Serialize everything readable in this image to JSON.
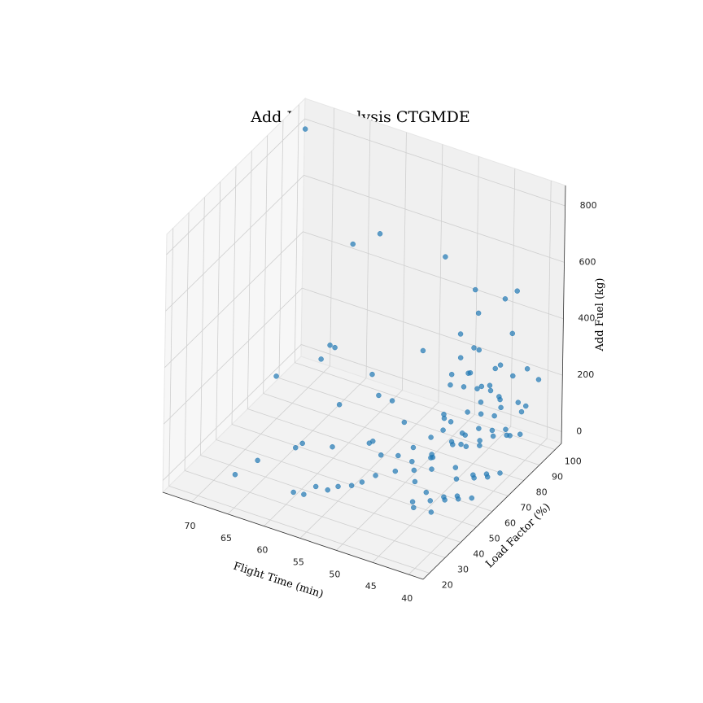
{
  "chart_data": {
    "type": "scatter3d",
    "title": "Add Fuel Analysis CTGMDE",
    "x_label": "Flight Time (min)",
    "y_label": "Load Factor (%)",
    "z_label": "Add Fuel (kg)",
    "color": "#1f77b4",
    "xlim": [
      74,
      38
    ],
    "ylim": [
      16,
      104
    ],
    "zlim": [
      -42,
      872
    ],
    "xticks": [
      40,
      45,
      50,
      55,
      60,
      65,
      70
    ],
    "yticks": [
      20,
      30,
      40,
      50,
      60,
      70,
      80,
      90,
      100
    ],
    "zticks": [
      0,
      200,
      400,
      600,
      800
    ],
    "x": [
      72,
      45,
      60,
      62,
      44,
      42,
      41,
      45,
      43,
      60,
      50,
      47,
      42,
      44,
      55,
      64,
      68,
      66,
      52,
      40,
      58,
      56,
      48,
      46,
      44,
      43,
      42,
      41,
      40,
      45,
      47,
      46,
      44,
      43,
      42,
      41,
      40,
      48,
      49,
      50,
      47,
      46,
      45,
      44,
      43,
      42,
      41,
      40,
      48,
      47,
      46,
      45,
      44,
      43,
      42,
      41,
      40,
      49,
      48,
      47,
      46,
      45,
      44,
      43,
      42,
      50,
      51,
      52,
      53,
      54,
      55,
      56,
      57,
      58,
      59,
      50,
      49,
      48,
      47,
      46,
      45,
      44,
      43,
      42,
      41,
      40,
      48,
      47,
      46,
      45,
      60,
      64,
      66,
      62,
      58,
      54,
      52,
      50,
      49,
      48,
      47,
      46,
      45,
      43,
      41,
      44,
      42,
      40,
      55,
      53
    ],
    "y": [
      95,
      60,
      88,
      80,
      75,
      85,
      88,
      82,
      70,
      60,
      70,
      80,
      90,
      78,
      40,
      70,
      60,
      85,
      60,
      98,
      75,
      70,
      85,
      82,
      80,
      75,
      82,
      78,
      85,
      90,
      70,
      65,
      68,
      88,
      70,
      92,
      80,
      75,
      60,
      55,
      62,
      58,
      72,
      64,
      60,
      66,
      70,
      74,
      68,
      76,
      80,
      84,
      88,
      92,
      96,
      62,
      66,
      72,
      80,
      84,
      88,
      92,
      96,
      52,
      56,
      64,
      58,
      50,
      46,
      44,
      40,
      38,
      35,
      32,
      30,
      76,
      84,
      90,
      94,
      98,
      50,
      48,
      44,
      48,
      52,
      56,
      56,
      52,
      46,
      42,
      40,
      30,
      25,
      45,
      50,
      55,
      68,
      88,
      92,
      96,
      100,
      70,
      76,
      84,
      86,
      92,
      100,
      90,
      62,
      58
    ],
    "z": [
      830,
      800,
      600,
      590,
      610,
      540,
      560,
      480,
      440,
      350,
      370,
      400,
      390,
      380,
      300,
      220,
      180,
      170,
      230,
      200,
      190,
      160,
      280,
      260,
      240,
      220,
      210,
      230,
      190,
      180,
      170,
      150,
      140,
      130,
      120,
      110,
      100,
      120,
      90,
      80,
      60,
      50,
      70,
      40,
      30,
      20,
      10,
      0,
      20,
      30,
      10,
      0,
      20,
      10,
      0,
      40,
      30,
      0,
      10,
      20,
      30,
      10,
      0,
      10,
      0,
      10,
      0,
      20,
      10,
      0,
      10,
      0,
      20,
      0,
      10,
      30,
      50,
      60,
      40,
      20,
      20,
      10,
      0,
      30,
      20,
      10,
      40,
      30,
      0,
      10,
      120,
      80,
      40,
      60,
      70,
      90,
      110,
      150,
      130,
      110,
      90,
      320,
      300,
      290,
      270,
      250,
      210,
      150,
      50,
      40
    ]
  }
}
